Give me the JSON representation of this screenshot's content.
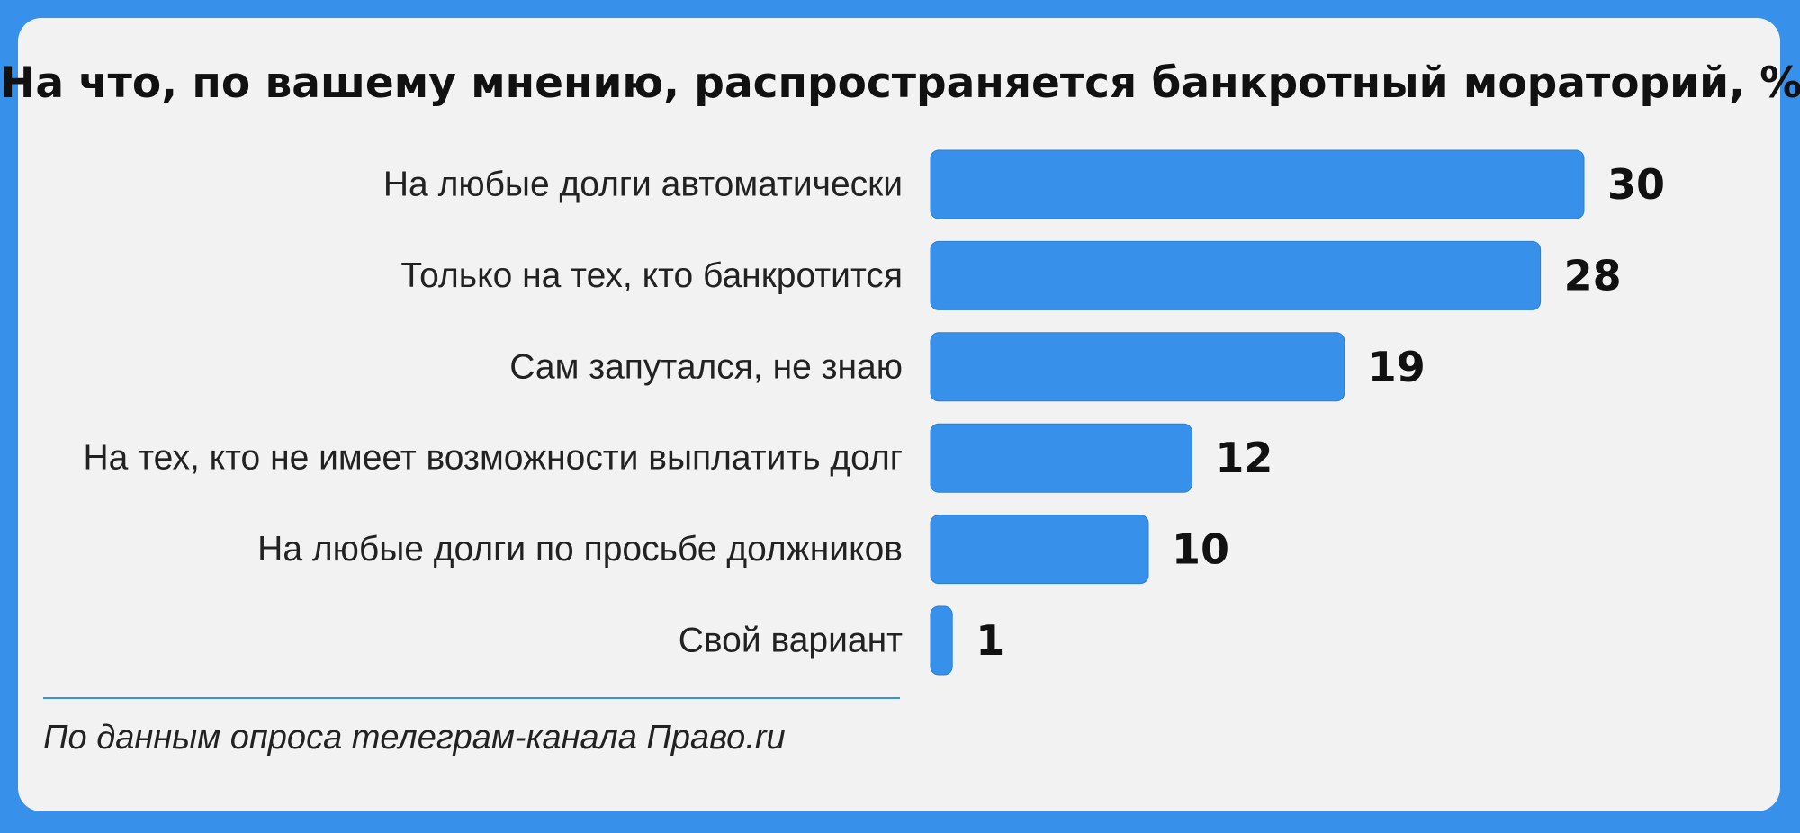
{
  "chart_data": {
    "type": "bar",
    "orientation": "horizontal",
    "title": "На что, по вашему мнению, распространяется банкротный мораторий, %?",
    "categories": [
      "На любые долги автоматически",
      "Только на тех, кто банкротится",
      "Сам запутался, не знаю",
      "На тех, кто не имеет возможности выплатить долг",
      "На любые долги по просьбе должников",
      "Свой вариант"
    ],
    "values": [
      30,
      28,
      19,
      12,
      10,
      1
    ],
    "value_labels": [
      "30",
      "28",
      "19",
      "12",
      "10",
      "1"
    ],
    "xlim": [
      0,
      30
    ],
    "grid": false,
    "legend": "none",
    "xlabel": "",
    "ylabel": ""
  },
  "colors": {
    "bar": "#3790ea",
    "background": "#3790ea",
    "card": "#f2f2f2",
    "text": "#111111"
  },
  "source": "По данным опроса телеграм-канала Право.ru"
}
